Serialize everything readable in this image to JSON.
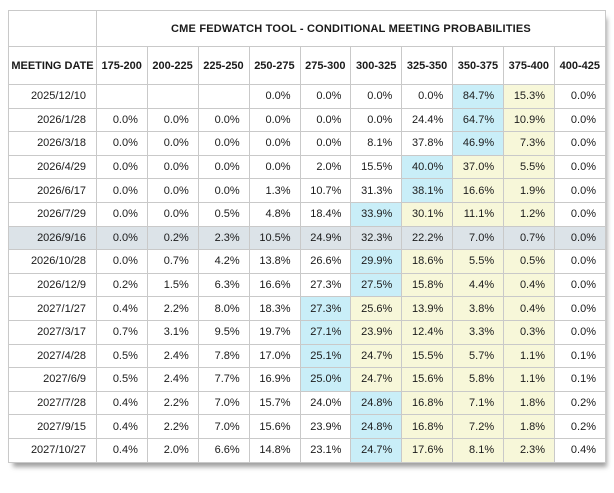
{
  "title": "CME FEDWATCH TOOL - CONDITIONAL MEETING PROBABILITIES",
  "columns": {
    "date_header": "MEETING DATE",
    "ranges": [
      "175-200",
      "200-225",
      "225-250",
      "250-275",
      "275-300",
      "300-325",
      "325-350",
      "350-375",
      "375-400",
      "400-425"
    ]
  },
  "rows": [
    {
      "date": "2025/12/10",
      "values": [
        "",
        "",
        "",
        "0.0%",
        "0.0%",
        "0.0%",
        "0.0%",
        "84.7%",
        "15.3%",
        "0.0%"
      ],
      "styles": [
        "",
        "",
        "",
        "",
        "",
        "",
        "",
        "blue",
        "yellow",
        ""
      ],
      "selected": false
    },
    {
      "date": "2026/1/28",
      "values": [
        "0.0%",
        "0.0%",
        "0.0%",
        "0.0%",
        "0.0%",
        "0.0%",
        "24.4%",
        "64.7%",
        "10.9%",
        "0.0%"
      ],
      "styles": [
        "",
        "",
        "",
        "",
        "",
        "",
        "",
        "blue",
        "yellow",
        ""
      ],
      "selected": false
    },
    {
      "date": "2026/3/18",
      "values": [
        "0.0%",
        "0.0%",
        "0.0%",
        "0.0%",
        "0.0%",
        "8.1%",
        "37.8%",
        "46.9%",
        "7.3%",
        "0.0%"
      ],
      "styles": [
        "",
        "",
        "",
        "",
        "",
        "",
        "",
        "blue",
        "yellow",
        ""
      ],
      "selected": false
    },
    {
      "date": "2026/4/29",
      "values": [
        "0.0%",
        "0.0%",
        "0.0%",
        "0.0%",
        "2.0%",
        "15.5%",
        "40.0%",
        "37.0%",
        "5.5%",
        "0.0%"
      ],
      "styles": [
        "",
        "",
        "",
        "",
        "",
        "",
        "blue",
        "yellow",
        "yellow",
        ""
      ],
      "selected": false
    },
    {
      "date": "2026/6/17",
      "values": [
        "0.0%",
        "0.0%",
        "0.0%",
        "1.3%",
        "10.7%",
        "31.3%",
        "38.1%",
        "16.6%",
        "1.9%",
        "0.0%"
      ],
      "styles": [
        "",
        "",
        "",
        "",
        "",
        "",
        "blue",
        "yellow",
        "yellow",
        ""
      ],
      "selected": false
    },
    {
      "date": "2026/7/29",
      "values": [
        "0.0%",
        "0.0%",
        "0.5%",
        "4.8%",
        "18.4%",
        "33.9%",
        "30.1%",
        "11.1%",
        "1.2%",
        "0.0%"
      ],
      "styles": [
        "",
        "",
        "",
        "",
        "",
        "blue",
        "yellow",
        "yellow",
        "yellow",
        ""
      ],
      "selected": false
    },
    {
      "date": "2026/9/16",
      "values": [
        "0.0%",
        "0.2%",
        "2.3%",
        "10.5%",
        "24.9%",
        "32.3%",
        "22.2%",
        "7.0%",
        "0.7%",
        "0.0%"
      ],
      "styles": [
        "",
        "",
        "",
        "",
        "",
        "",
        "",
        "",
        "",
        ""
      ],
      "selected": true
    },
    {
      "date": "2026/10/28",
      "values": [
        "0.0%",
        "0.7%",
        "4.2%",
        "13.8%",
        "26.6%",
        "29.9%",
        "18.6%",
        "5.5%",
        "0.5%",
        "0.0%"
      ],
      "styles": [
        "",
        "",
        "",
        "",
        "",
        "blue",
        "yellow",
        "yellow",
        "yellow",
        ""
      ],
      "selected": false
    },
    {
      "date": "2026/12/9",
      "values": [
        "0.2%",
        "1.5%",
        "6.3%",
        "16.6%",
        "27.3%",
        "27.5%",
        "15.8%",
        "4.4%",
        "0.4%",
        "0.0%"
      ],
      "styles": [
        "",
        "",
        "",
        "",
        "",
        "blue",
        "yellow",
        "yellow",
        "yellow",
        ""
      ],
      "selected": false
    },
    {
      "date": "2027/1/27",
      "values": [
        "0.4%",
        "2.2%",
        "8.0%",
        "18.3%",
        "27.3%",
        "25.6%",
        "13.9%",
        "3.8%",
        "0.4%",
        "0.0%"
      ],
      "styles": [
        "",
        "",
        "",
        "",
        "blue",
        "yellow",
        "yellow",
        "yellow",
        "yellow",
        ""
      ],
      "selected": false
    },
    {
      "date": "2027/3/17",
      "values": [
        "0.7%",
        "3.1%",
        "9.5%",
        "19.7%",
        "27.1%",
        "23.9%",
        "12.4%",
        "3.3%",
        "0.3%",
        "0.0%"
      ],
      "styles": [
        "",
        "",
        "",
        "",
        "blue",
        "yellow",
        "yellow",
        "yellow",
        "yellow",
        ""
      ],
      "selected": false
    },
    {
      "date": "2027/4/28",
      "values": [
        "0.5%",
        "2.4%",
        "7.8%",
        "17.0%",
        "25.1%",
        "24.7%",
        "15.5%",
        "5.7%",
        "1.1%",
        "0.1%"
      ],
      "styles": [
        "",
        "",
        "",
        "",
        "blue",
        "yellow",
        "yellow",
        "yellow",
        "yellow",
        ""
      ],
      "selected": false
    },
    {
      "date": "2027/6/9",
      "values": [
        "0.5%",
        "2.4%",
        "7.7%",
        "16.9%",
        "25.0%",
        "24.7%",
        "15.6%",
        "5.8%",
        "1.1%",
        "0.1%"
      ],
      "styles": [
        "",
        "",
        "",
        "",
        "blue",
        "yellow",
        "yellow",
        "yellow",
        "yellow",
        ""
      ],
      "selected": false
    },
    {
      "date": "2027/7/28",
      "values": [
        "0.4%",
        "2.2%",
        "7.0%",
        "15.7%",
        "24.0%",
        "24.8%",
        "16.8%",
        "7.1%",
        "1.8%",
        "0.2%"
      ],
      "styles": [
        "",
        "",
        "",
        "",
        "",
        "blue",
        "yellow",
        "yellow",
        "yellow",
        ""
      ],
      "selected": false
    },
    {
      "date": "2027/9/15",
      "values": [
        "0.4%",
        "2.2%",
        "7.0%",
        "15.6%",
        "23.9%",
        "24.8%",
        "16.8%",
        "7.2%",
        "1.8%",
        "0.2%"
      ],
      "styles": [
        "",
        "",
        "",
        "",
        "",
        "blue",
        "yellow",
        "yellow",
        "yellow",
        ""
      ],
      "selected": false
    },
    {
      "date": "2027/10/27",
      "values": [
        "0.4%",
        "2.0%",
        "6.6%",
        "14.8%",
        "23.1%",
        "24.7%",
        "17.6%",
        "8.1%",
        "2.3%",
        "0.4%"
      ],
      "styles": [
        "",
        "",
        "",
        "",
        "",
        "blue",
        "yellow",
        "yellow",
        "yellow",
        ""
      ],
      "selected": false
    }
  ],
  "colors": {
    "blue_highlight": "#c9eef8",
    "yellow_highlight": "#f7f7d9",
    "selected_row": "#dce3e8",
    "border": "#c9c9c9",
    "text": "#1a1a1a"
  }
}
